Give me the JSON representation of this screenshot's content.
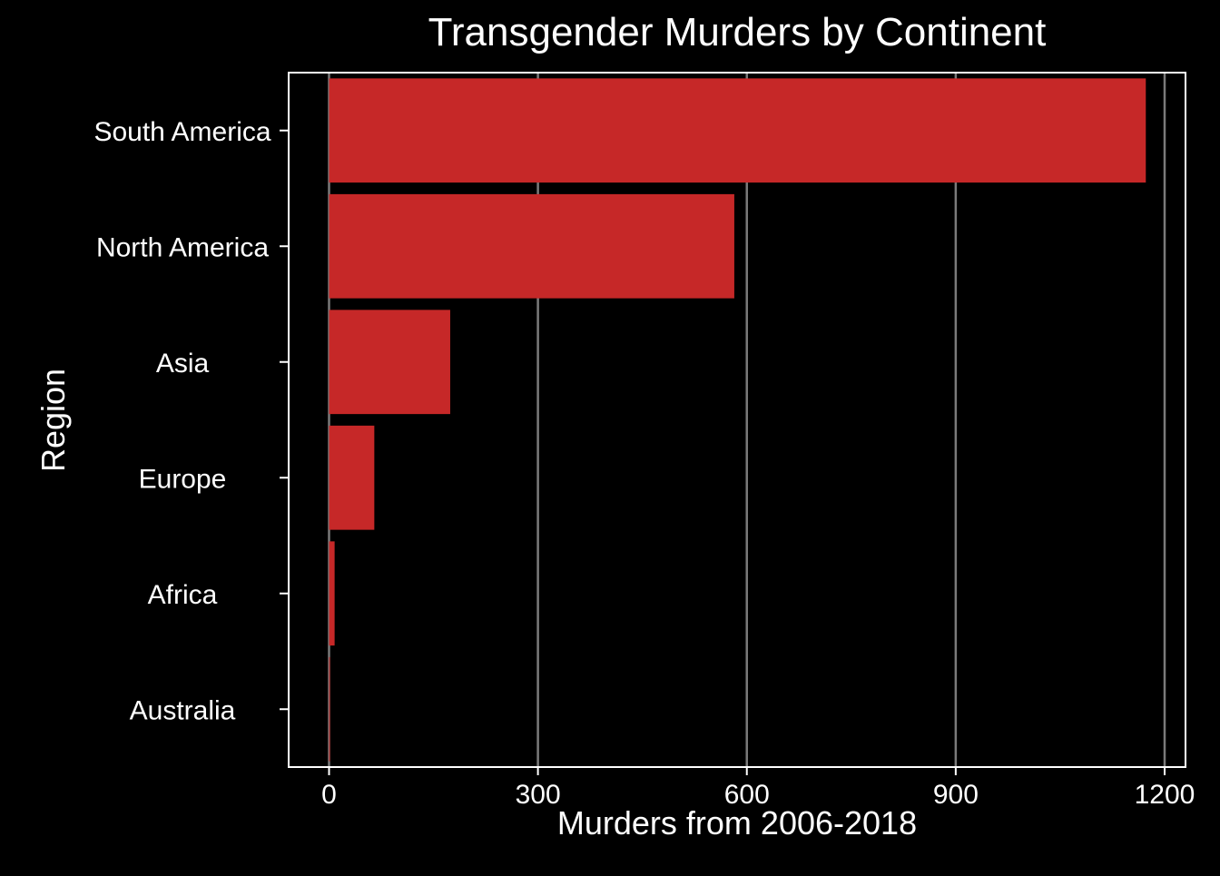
{
  "chart_data": {
    "type": "bar",
    "orientation": "horizontal",
    "title": "Transgender Murders by Continent",
    "xlabel": "Murders from 2006-2018",
    "ylabel": "Region",
    "categories": [
      "South America",
      "North America",
      "Asia",
      "Europe",
      "Africa",
      "Australia"
    ],
    "values": [
      1173,
      582,
      174,
      65,
      8,
      1
    ],
    "xlim": [
      -58,
      1230
    ],
    "xticks": [
      "0",
      "300",
      "600",
      "900",
      "1200"
    ],
    "grid": "vertical",
    "legend": "none",
    "colors": {
      "background": "#000000",
      "bar": "#C62828",
      "grid": "#7a7a7a",
      "frame": "#ffffff",
      "text": "#ffffff"
    }
  }
}
